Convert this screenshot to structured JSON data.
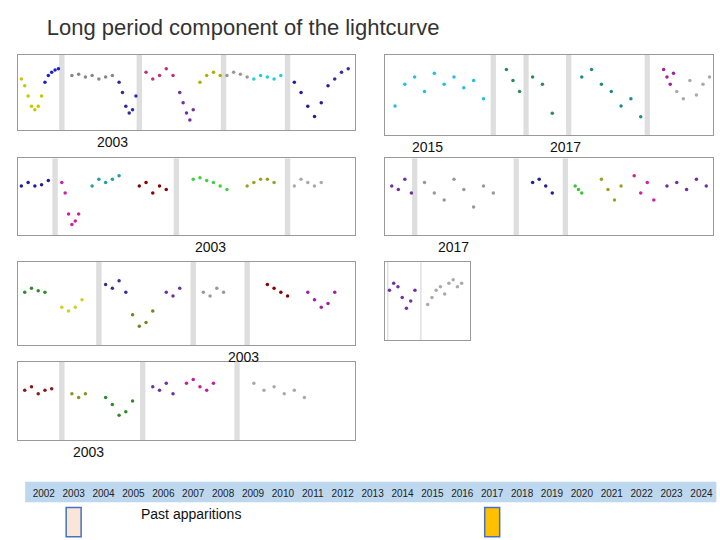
{
  "title": "Long period component of the lightcurve",
  "chart_data": [
    {
      "type": "scatter",
      "annotations": [
        "2003"
      ],
      "xlim": [
        0,
        100
      ],
      "ylim": [
        -0.6,
        0.5
      ],
      "tick_labels": false,
      "breaks": [
        13,
        36,
        61,
        80
      ],
      "series": [
        {
          "color": "#c8c800",
          "x": [
            1,
            2,
            3,
            4,
            5,
            6,
            7
          ],
          "values": [
            0.15,
            0.05,
            -0.1,
            -0.25,
            -0.3,
            -0.25,
            -0.1
          ]
        },
        {
          "color": "#1f1fcc",
          "x": [
            8,
            9,
            10,
            11,
            12
          ],
          "values": [
            0.1,
            0.2,
            0.25,
            0.28,
            0.3
          ]
        },
        {
          "color": "#888888",
          "x": [
            16,
            18,
            20,
            22,
            24,
            26,
            28
          ],
          "values": [
            0.2,
            0.22,
            0.18,
            0.2,
            0.15,
            0.18,
            0.2
          ]
        },
        {
          "color": "#2b2b9f",
          "x": [
            30,
            31,
            32,
            33,
            34,
            35
          ],
          "values": [
            0.1,
            -0.05,
            -0.25,
            -0.35,
            -0.3,
            -0.1
          ]
        },
        {
          "color": "#c0307f",
          "x": [
            38,
            40,
            42,
            44,
            46
          ],
          "values": [
            0.25,
            0.15,
            0.2,
            0.3,
            0.2
          ]
        },
        {
          "color": "#7030a0",
          "x": [
            48,
            49,
            50,
            51,
            52
          ],
          "values": [
            -0.05,
            -0.2,
            -0.35,
            -0.45,
            -0.3
          ]
        },
        {
          "color": "#b0b000",
          "x": [
            54,
            56,
            58,
            60
          ],
          "values": [
            0.1,
            0.2,
            0.25,
            0.2
          ]
        },
        {
          "color": "#999999",
          "x": [
            62,
            64,
            66,
            68
          ],
          "values": [
            0.2,
            0.25,
            0.22,
            0.18
          ]
        },
        {
          "color": "#1fd0e0",
          "x": [
            70,
            72,
            74,
            76,
            78
          ],
          "values": [
            0.15,
            0.2,
            0.18,
            0.15,
            0.2
          ]
        },
        {
          "color": "#1f1f99",
          "x": [
            82,
            84,
            86,
            88,
            90,
            92
          ],
          "values": [
            0.1,
            -0.05,
            -0.25,
            -0.4,
            -0.2,
            0.05
          ]
        },
        {
          "color": "#3030a0",
          "x": [
            94,
            96,
            98
          ],
          "values": [
            0.15,
            0.25,
            0.3
          ]
        }
      ]
    },
    {
      "type": "scatter",
      "annotations": [
        "2015",
        "2017"
      ],
      "xlim": [
        0,
        100
      ],
      "ylim": [
        -0.6,
        0.5
      ],
      "tick_labels": false,
      "breaks": [
        33,
        43,
        56,
        80
      ],
      "series": [
        {
          "color": "#20c0e0",
          "x": [
            3,
            6,
            9,
            12,
            15,
            18,
            21,
            24,
            27,
            30
          ],
          "values": [
            -0.2,
            0.1,
            0.2,
            0.0,
            0.25,
            0.1,
            0.2,
            0.05,
            0.15,
            -0.1
          ]
        },
        {
          "color": "#2e8b57",
          "x": [
            37,
            39,
            41,
            45,
            48,
            51
          ],
          "values": [
            0.3,
            0.15,
            0.0,
            0.2,
            0.1,
            -0.3
          ]
        },
        {
          "color": "#1f8c8c",
          "x": [
            60,
            63,
            66,
            69,
            72,
            75,
            78
          ],
          "values": [
            0.2,
            0.3,
            0.1,
            0.0,
            -0.2,
            -0.1,
            -0.35
          ]
        },
        {
          "color": "#a020a0",
          "x": [
            85,
            86,
            87,
            88
          ],
          "values": [
            0.3,
            0.2,
            0.1,
            0.25
          ]
        },
        {
          "color": "#aaaaaa",
          "x": [
            89,
            91,
            93,
            95,
            97,
            99
          ],
          "values": [
            0.0,
            -0.1,
            0.15,
            -0.05,
            0.1,
            0.2
          ]
        }
      ]
    },
    {
      "type": "scatter",
      "annotations": [
        "2003"
      ],
      "xlim": [
        0,
        100
      ],
      "ylim": [
        -0.6,
        0.5
      ],
      "tick_labels": false,
      "breaks": [
        11,
        47,
        80
      ],
      "series": [
        {
          "color": "#1f1f99",
          "x": [
            1,
            3,
            5,
            7,
            9
          ],
          "values": [
            0.1,
            0.15,
            0.1,
            0.12,
            0.18
          ]
        },
        {
          "color": "#d020a0",
          "x": [
            13,
            14,
            15,
            16,
            17,
            18
          ],
          "values": [
            0.15,
            0.0,
            -0.3,
            -0.45,
            -0.4,
            -0.3
          ]
        },
        {
          "color": "#20a0a0",
          "x": [
            22,
            24,
            26,
            28,
            30
          ],
          "values": [
            0.1,
            0.2,
            0.15,
            0.2,
            0.25
          ]
        },
        {
          "color": "#8b0000",
          "x": [
            36,
            38,
            40,
            42,
            44
          ],
          "values": [
            0.1,
            0.15,
            0.0,
            0.1,
            0.05
          ]
        },
        {
          "color": "#40d040",
          "x": [
            52,
            54,
            56,
            58,
            60,
            62
          ],
          "values": [
            0.2,
            0.22,
            0.18,
            0.15,
            0.1,
            0.05
          ]
        },
        {
          "color": "#a0a020",
          "x": [
            68,
            70,
            72,
            74,
            76
          ],
          "values": [
            0.1,
            0.15,
            0.2,
            0.2,
            0.15
          ]
        },
        {
          "color": "#aaaaaa",
          "x": [
            82,
            84,
            86,
            88,
            90
          ],
          "values": [
            0.1,
            0.2,
            0.15,
            0.1,
            0.15
          ]
        }
      ]
    },
    {
      "type": "scatter",
      "annotations": [
        "2017"
      ],
      "xlim": [
        0,
        100
      ],
      "ylim": [
        -0.6,
        0.5
      ],
      "tick_labels": false,
      "breaks": [
        9,
        40,
        55
      ],
      "series": [
        {
          "color": "#7030a0",
          "x": [
            2,
            4,
            6,
            8
          ],
          "values": [
            0.1,
            0.05,
            0.2,
            0.0
          ]
        },
        {
          "color": "#999999",
          "x": [
            12,
            15,
            18,
            21,
            24,
            27,
            30,
            33
          ],
          "values": [
            0.15,
            0.0,
            -0.1,
            0.2,
            0.05,
            -0.2,
            0.1,
            0.0
          ]
        },
        {
          "color": "#1f1f99",
          "x": [
            45,
            47,
            49,
            51
          ],
          "values": [
            0.15,
            0.2,
            0.1,
            0.0
          ]
        },
        {
          "color": "#40c040",
          "x": [
            58,
            59,
            60
          ],
          "values": [
            0.1,
            0.05,
            0.0
          ]
        },
        {
          "color": "#a0a020",
          "x": [
            66,
            68,
            70,
            72
          ],
          "values": [
            0.2,
            0.05,
            -0.1,
            0.1
          ]
        },
        {
          "color": "#d020a0",
          "x": [
            76,
            78,
            80,
            82
          ],
          "values": [
            0.25,
            0.0,
            0.15,
            -0.1
          ]
        },
        {
          "color": "#7030a0",
          "x": [
            86,
            89,
            92,
            95,
            98
          ],
          "values": [
            0.1,
            0.15,
            0.05,
            0.2,
            0.1
          ]
        }
      ]
    },
    {
      "type": "scatter",
      "annotations": [
        "2003"
      ],
      "xlim": [
        0,
        100
      ],
      "ylim": [
        -0.6,
        0.5
      ],
      "tick_labels": false,
      "breaks": [
        24,
        52,
        68
      ],
      "series": [
        {
          "color": "#2e8b2e",
          "x": [
            2,
            4,
            6,
            8
          ],
          "values": [
            0.1,
            0.15,
            0.12,
            0.1
          ]
        },
        {
          "color": "#d0d020",
          "x": [
            13,
            15,
            17,
            19
          ],
          "values": [
            -0.1,
            -0.15,
            -0.1,
            0.0
          ]
        },
        {
          "color": "#3030a0",
          "x": [
            26,
            28,
            30,
            32
          ],
          "values": [
            0.2,
            0.15,
            0.25,
            0.1
          ]
        },
        {
          "color": "#808020",
          "x": [
            34,
            36,
            38,
            40
          ],
          "values": [
            -0.2,
            -0.35,
            -0.3,
            -0.15
          ]
        },
        {
          "color": "#7030a0",
          "x": [
            44,
            46,
            48
          ],
          "values": [
            0.1,
            0.05,
            0.15
          ]
        },
        {
          "color": "#999999",
          "x": [
            55,
            57,
            59,
            61
          ],
          "values": [
            0.1,
            0.05,
            0.15,
            0.1
          ]
        },
        {
          "color": "#8b0000",
          "x": [
            74,
            76,
            78,
            80
          ],
          "values": [
            0.2,
            0.15,
            0.1,
            0.05
          ]
        },
        {
          "color": "#a020a0",
          "x": [
            86,
            88,
            90,
            92,
            94
          ],
          "values": [
            0.1,
            0.0,
            -0.1,
            -0.05,
            0.1
          ]
        }
      ]
    },
    {
      "type": "scatter",
      "annotations": [],
      "xlim": [
        0,
        100
      ],
      "ylim": [
        -0.6,
        0.5
      ],
      "tick_labels": false,
      "breaks": [
        3,
        42
      ],
      "series": [
        {
          "color": "#7030a0",
          "x": [
            5,
            10,
            15,
            20,
            25,
            30,
            35
          ],
          "values": [
            0.1,
            0.2,
            0.15,
            0.0,
            -0.15,
            -0.05,
            0.1
          ]
        },
        {
          "color": "#aaaaaa",
          "x": [
            50,
            55,
            60,
            65,
            70,
            75,
            80,
            85,
            90
          ],
          "values": [
            -0.1,
            0.0,
            0.1,
            0.15,
            0.05,
            0.2,
            0.25,
            0.15,
            0.2
          ]
        }
      ]
    },
    {
      "type": "scatter",
      "annotations": [
        "2003"
      ],
      "xlim": [
        0,
        100
      ],
      "ylim": [
        -0.6,
        0.5
      ],
      "tick_labels": false,
      "breaks": [
        13,
        37,
        65
      ],
      "series": [
        {
          "color": "#8b1a1a",
          "x": [
            2,
            4,
            6,
            8,
            10
          ],
          "values": [
            0.1,
            0.15,
            0.05,
            0.1,
            0.12
          ]
        },
        {
          "color": "#909020",
          "x": [
            16,
            18,
            20
          ],
          "values": [
            0.05,
            0.0,
            0.05
          ]
        },
        {
          "color": "#2e8b2e",
          "x": [
            26,
            28,
            30,
            32,
            34
          ],
          "values": [
            0.0,
            -0.1,
            -0.25,
            -0.2,
            -0.05
          ]
        },
        {
          "color": "#7030a0",
          "x": [
            40,
            42,
            44,
            46
          ],
          "values": [
            0.15,
            0.1,
            0.2,
            0.05
          ]
        },
        {
          "color": "#c020a0",
          "x": [
            50,
            52,
            54,
            56,
            58
          ],
          "values": [
            0.2,
            0.25,
            0.15,
            0.1,
            0.2
          ]
        },
        {
          "color": "#aaaaaa",
          "x": [
            70,
            73,
            76,
            79,
            82,
            85
          ],
          "values": [
            0.2,
            0.1,
            0.15,
            0.05,
            0.1,
            0.0
          ]
        }
      ]
    },
    {
      "type": "timeline",
      "xlim": [
        2001.5,
        2024.5
      ],
      "xticks": [
        2002,
        2003,
        2004,
        2005,
        2006,
        2007,
        2008,
        2009,
        2010,
        2011,
        2012,
        2013,
        2014,
        2015,
        2016,
        2017,
        2018,
        2019,
        2020,
        2021,
        2022,
        2023,
        2024
      ],
      "annotations": [
        "Past apparitions"
      ],
      "highlight": [
        2003,
        2017
      ],
      "colors": [
        "#fbe5d6",
        "#ffc000"
      ]
    }
  ]
}
